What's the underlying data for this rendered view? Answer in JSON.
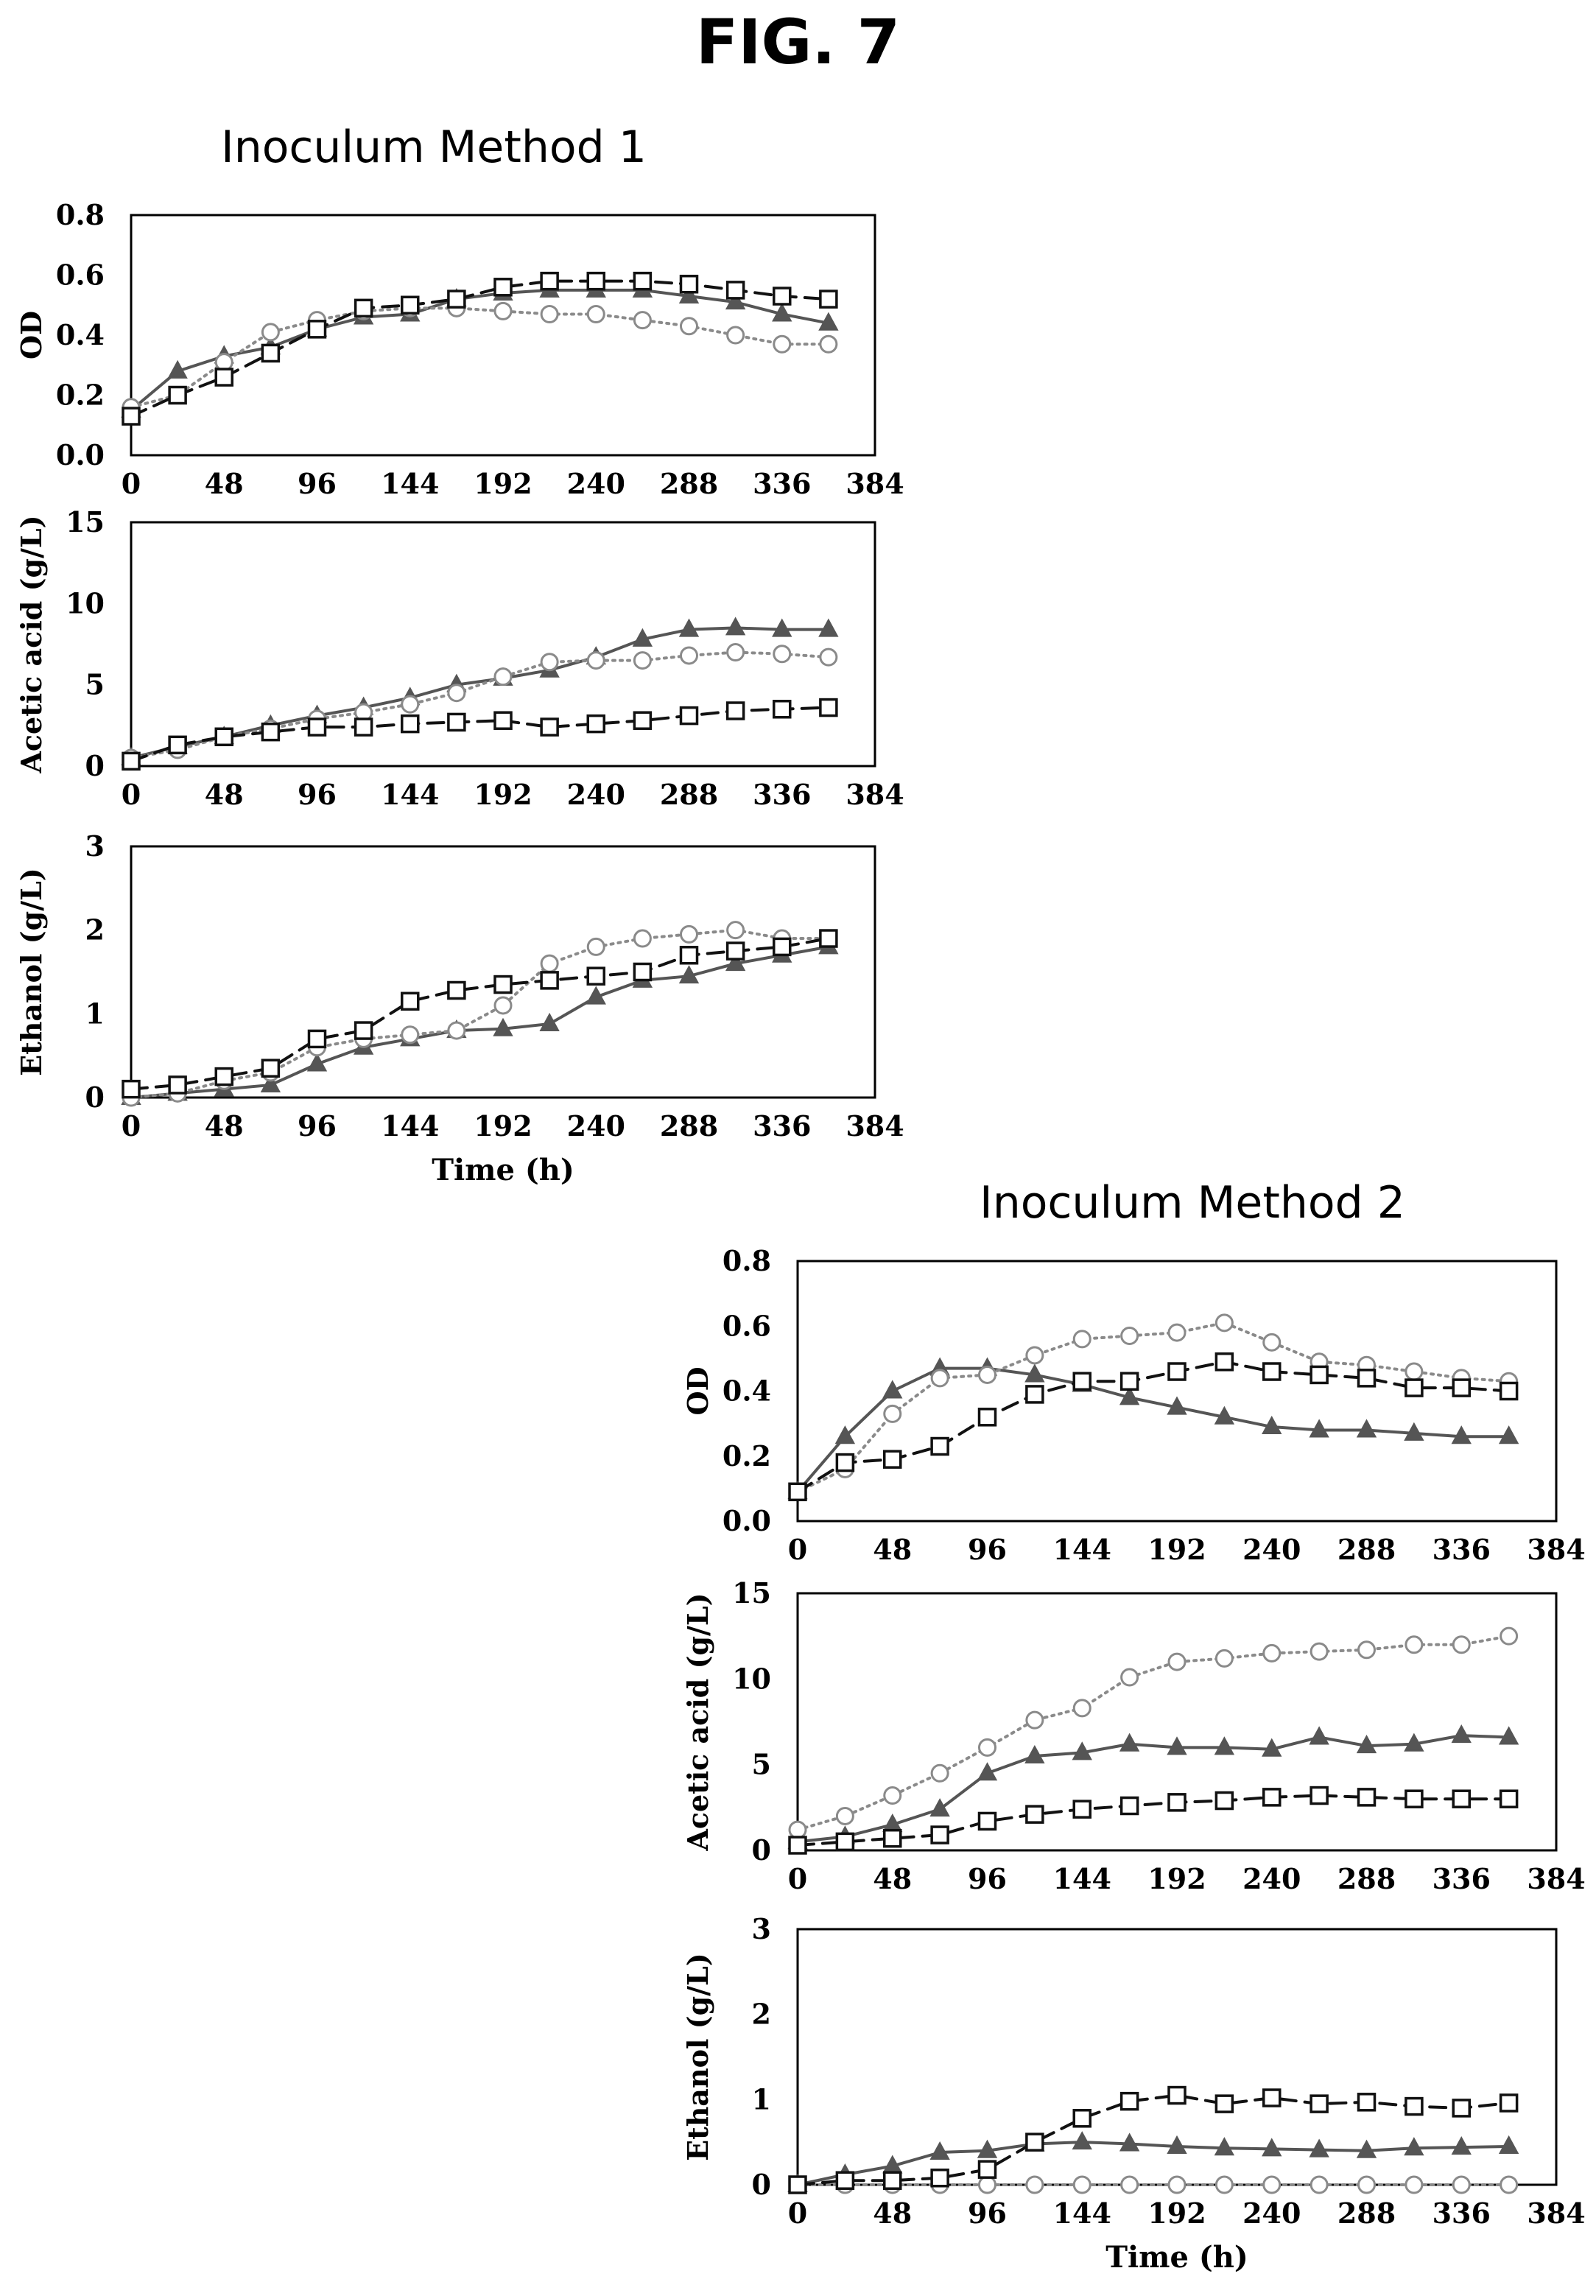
{
  "figure": {
    "title": "FIG. 7",
    "method1_title": "Inoculum Method 1",
    "method2_title": "Inoculum Method 2"
  },
  "series_styles": [
    {
      "key": "triangle",
      "marker": "triangle",
      "line": "solid",
      "color": "#555555",
      "fill": "#555555"
    },
    {
      "key": "circle",
      "marker": "circle",
      "line": "dotted",
      "color": "#8a8a8a",
      "fill": "#ffffff"
    },
    {
      "key": "square",
      "marker": "square",
      "line": "dashed",
      "color": "#111111",
      "fill": "#ffffff"
    }
  ],
  "chart_data": [
    {
      "type": "line",
      "group": "Inoculum Method 1",
      "ylabel": "OD",
      "xlabel": "",
      "xlim": [
        0,
        384
      ],
      "xticks": [
        0,
        48,
        96,
        144,
        192,
        240,
        288,
        336,
        384
      ],
      "ylim": [
        0,
        0.8
      ],
      "yticks": [
        "0.0",
        "0.2",
        "0.4",
        "0.6",
        "0.8"
      ],
      "x": [
        0,
        24,
        48,
        72,
        96,
        120,
        144,
        168,
        192,
        216,
        240,
        264,
        288,
        312,
        336,
        360
      ],
      "series": [
        {
          "style": "triangle",
          "values": [
            0.15,
            0.28,
            0.33,
            0.36,
            0.42,
            0.46,
            0.47,
            0.52,
            0.54,
            0.55,
            0.55,
            0.55,
            0.53,
            0.51,
            0.47,
            0.44
          ]
        },
        {
          "style": "circle",
          "values": [
            0.16,
            0.2,
            0.31,
            0.41,
            0.45,
            0.48,
            0.49,
            0.49,
            0.48,
            0.47,
            0.47,
            0.45,
            0.43,
            0.4,
            0.37,
            0.37
          ]
        },
        {
          "style": "square",
          "values": [
            0.13,
            0.2,
            0.26,
            0.34,
            0.42,
            0.49,
            0.5,
            0.52,
            0.56,
            0.58,
            0.58,
            0.58,
            0.57,
            0.55,
            0.53,
            0.52
          ]
        }
      ]
    },
    {
      "type": "line",
      "group": "Inoculum Method 1",
      "ylabel": "Acetic acid (g/L)",
      "xlabel": "",
      "xlim": [
        0,
        384
      ],
      "xticks": [
        0,
        48,
        96,
        144,
        192,
        240,
        288,
        336,
        384
      ],
      "ylim": [
        0,
        15
      ],
      "yticks": [
        "0",
        "5",
        "10",
        "15"
      ],
      "x": [
        0,
        24,
        48,
        72,
        96,
        120,
        144,
        168,
        192,
        216,
        240,
        264,
        288,
        312,
        336,
        360
      ],
      "series": [
        {
          "style": "triangle",
          "values": [
            0.5,
            1.2,
            1.8,
            2.5,
            3.1,
            3.6,
            4.2,
            5.0,
            5.4,
            5.9,
            6.7,
            7.8,
            8.4,
            8.5,
            8.4,
            8.4
          ]
        },
        {
          "style": "circle",
          "values": [
            0.5,
            1.0,
            1.8,
            2.3,
            2.9,
            3.3,
            3.8,
            4.5,
            5.5,
            6.4,
            6.5,
            6.5,
            6.8,
            7.0,
            6.9,
            6.7
          ]
        },
        {
          "style": "square",
          "values": [
            0.3,
            1.3,
            1.8,
            2.1,
            2.4,
            2.4,
            2.6,
            2.7,
            2.8,
            2.4,
            2.6,
            2.8,
            3.1,
            3.4,
            3.5,
            3.6
          ]
        }
      ]
    },
    {
      "type": "line",
      "group": "Inoculum Method 1",
      "ylabel": "Ethanol (g/L)",
      "xlabel": "Time (h)",
      "xlim": [
        0,
        384
      ],
      "xticks": [
        0,
        48,
        96,
        144,
        192,
        240,
        288,
        336,
        384
      ],
      "ylim": [
        0,
        3
      ],
      "yticks": [
        "0",
        "1",
        "2",
        "3"
      ],
      "x": [
        0,
        24,
        48,
        72,
        96,
        120,
        144,
        168,
        192,
        216,
        240,
        264,
        288,
        312,
        336,
        360
      ],
      "series": [
        {
          "style": "triangle",
          "values": [
            0.0,
            0.05,
            0.1,
            0.15,
            0.4,
            0.6,
            0.7,
            0.8,
            0.82,
            0.88,
            1.2,
            1.4,
            1.45,
            1.6,
            1.7,
            1.8
          ]
        },
        {
          "style": "circle",
          "values": [
            0.0,
            0.05,
            0.2,
            0.3,
            0.6,
            0.7,
            0.75,
            0.8,
            1.1,
            1.6,
            1.8,
            1.9,
            1.95,
            2.0,
            1.9,
            1.9
          ]
        },
        {
          "style": "square",
          "values": [
            0.1,
            0.15,
            0.25,
            0.35,
            0.7,
            0.8,
            1.15,
            1.28,
            1.35,
            1.4,
            1.45,
            1.5,
            1.7,
            1.75,
            1.8,
            1.9
          ]
        }
      ]
    },
    {
      "type": "line",
      "group": "Inoculum Method 2",
      "ylabel": "OD",
      "xlabel": "",
      "xlim": [
        0,
        384
      ],
      "xticks": [
        0,
        48,
        96,
        144,
        192,
        240,
        288,
        336,
        384
      ],
      "ylim": [
        0,
        0.8
      ],
      "yticks": [
        "0.0",
        "0.2",
        "0.4",
        "0.6",
        "0.8"
      ],
      "x": [
        0,
        24,
        48,
        72,
        96,
        120,
        144,
        168,
        192,
        216,
        240,
        264,
        288,
        312,
        336,
        360
      ],
      "series": [
        {
          "style": "triangle",
          "values": [
            0.09,
            0.26,
            0.4,
            0.47,
            0.47,
            0.45,
            0.42,
            0.38,
            0.35,
            0.32,
            0.29,
            0.28,
            0.28,
            0.27,
            0.26,
            0.26
          ]
        },
        {
          "style": "circle",
          "values": [
            0.09,
            0.16,
            0.33,
            0.44,
            0.45,
            0.51,
            0.56,
            0.57,
            0.58,
            0.61,
            0.55,
            0.49,
            0.48,
            0.46,
            0.44,
            0.43
          ]
        },
        {
          "style": "square",
          "values": [
            0.09,
            0.18,
            0.19,
            0.23,
            0.32,
            0.39,
            0.43,
            0.43,
            0.46,
            0.49,
            0.46,
            0.45,
            0.44,
            0.41,
            0.41,
            0.4
          ]
        }
      ]
    },
    {
      "type": "line",
      "group": "Inoculum Method 2",
      "ylabel": "Acetic acid (g/L)",
      "xlabel": "",
      "xlim": [
        0,
        384
      ],
      "xticks": [
        0,
        48,
        96,
        144,
        192,
        240,
        288,
        336,
        384
      ],
      "ylim": [
        0,
        15
      ],
      "yticks": [
        "0",
        "5",
        "10",
        "15"
      ],
      "x": [
        0,
        24,
        48,
        72,
        96,
        120,
        144,
        168,
        192,
        216,
        240,
        264,
        288,
        312,
        336,
        360
      ],
      "series": [
        {
          "style": "triangle",
          "values": [
            0.5,
            0.8,
            1.5,
            2.4,
            4.5,
            5.5,
            5.7,
            6.2,
            6.0,
            6.0,
            5.9,
            6.6,
            6.1,
            6.2,
            6.7,
            6.6
          ]
        },
        {
          "style": "circle",
          "values": [
            1.2,
            2.0,
            3.2,
            4.5,
            6.0,
            7.6,
            8.3,
            10.1,
            11.0,
            11.2,
            11.5,
            11.6,
            11.7,
            12.0,
            12.0,
            12.5
          ]
        },
        {
          "style": "square",
          "values": [
            0.3,
            0.5,
            0.7,
            0.9,
            1.7,
            2.1,
            2.4,
            2.6,
            2.8,
            2.9,
            3.1,
            3.2,
            3.1,
            3.0,
            3.0,
            3.0
          ]
        }
      ]
    },
    {
      "type": "line",
      "group": "Inoculum Method 2",
      "ylabel": "Ethanol (g/L)",
      "xlabel": "Time (h)",
      "xlim": [
        0,
        384
      ],
      "xticks": [
        0,
        48,
        96,
        144,
        192,
        240,
        288,
        336,
        384
      ],
      "ylim": [
        0,
        3
      ],
      "yticks": [
        "0",
        "1",
        "2",
        "3"
      ],
      "x": [
        0,
        24,
        48,
        72,
        96,
        120,
        144,
        168,
        192,
        216,
        240,
        264,
        288,
        312,
        336,
        360
      ],
      "series": [
        {
          "style": "triangle",
          "values": [
            0.0,
            0.12,
            0.22,
            0.38,
            0.4,
            0.48,
            0.5,
            0.48,
            0.45,
            0.43,
            0.42,
            0.41,
            0.4,
            0.43,
            0.44,
            0.45
          ]
        },
        {
          "style": "circle",
          "values": [
            0.0,
            0.0,
            0.0,
            0.0,
            0.0,
            0.0,
            0.0,
            0.0,
            0.0,
            0.0,
            0.0,
            0.0,
            0.0,
            0.0,
            0.0,
            0.0
          ]
        },
        {
          "style": "square",
          "values": [
            0.0,
            0.05,
            0.05,
            0.08,
            0.18,
            0.5,
            0.78,
            0.98,
            1.05,
            0.95,
            1.02,
            0.95,
            0.97,
            0.92,
            0.9,
            0.96
          ]
        }
      ]
    }
  ]
}
